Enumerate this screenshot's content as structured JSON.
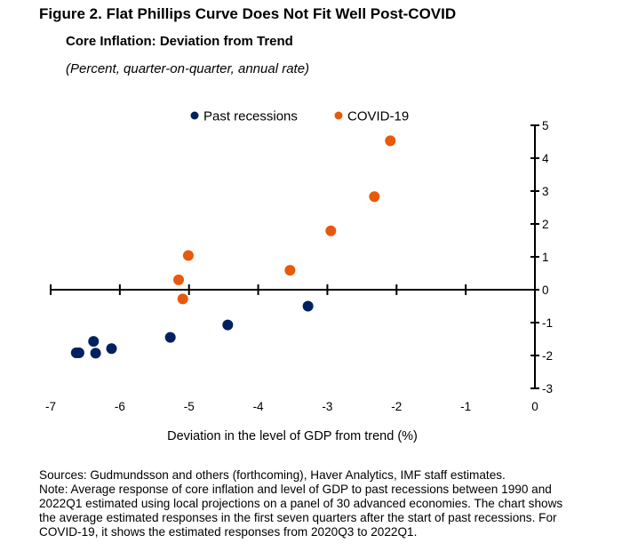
{
  "figure_title": "Figure 2. Flat Phillips Curve Does Not Fit Well Post-COVID",
  "chart_data": {
    "type": "scatter",
    "title": "Core Inflation: Deviation from Trend",
    "subtitle": "(Percent, quarter-on-quarter, annual rate)",
    "xlabel": "Deviation in the level of GDP from trend (%)",
    "ylabel": "",
    "xlim": [
      -7,
      0
    ],
    "ylim": [
      -3,
      5
    ],
    "xticks": [
      "-7",
      "-6",
      "-5",
      "-4",
      "-3",
      "-2",
      "-1",
      "0"
    ],
    "yticks": [
      "-3",
      "-2",
      "-1",
      "0",
      "1",
      "2",
      "3",
      "4",
      "5"
    ],
    "y_axis_position": "right",
    "grid": false,
    "legend_position": "top",
    "series": [
      {
        "name": "Past recessions",
        "color": "#002060",
        "points": [
          [
            -6.63,
            -1.92
          ],
          [
            -6.59,
            -1.92
          ],
          [
            -6.38,
            -1.57
          ],
          [
            -6.35,
            -1.93
          ],
          [
            -6.12,
            -1.79
          ],
          [
            -5.27,
            -1.45
          ],
          [
            -4.44,
            -1.07
          ],
          [
            -3.28,
            -0.5
          ]
        ]
      },
      {
        "name": "COVID-19",
        "color": "#E8590C",
        "points": [
          [
            -5.15,
            0.3
          ],
          [
            -5.09,
            -0.28
          ],
          [
            -5.01,
            1.04
          ],
          [
            -3.54,
            0.59
          ],
          [
            -2.95,
            1.79
          ],
          [
            -2.32,
            2.83
          ],
          [
            -2.09,
            4.53
          ]
        ]
      }
    ]
  },
  "notes": {
    "sources": "Sources: Gudmundsson and others (forthcoming), Haver Analytics, IMF staff estimates.",
    "note_lines": [
      "Note: Average response of core inflation and level of GDP to past recessions between 1990 and",
      "2022Q1 estimated using local projections on a panel of 30 advanced economies. The chart shows",
      "the average estimated responses in the first seven quarters after the start of past recessions. For",
      "COVID-19, it shows the estimated responses from 2020Q3 to 2022Q1."
    ]
  }
}
